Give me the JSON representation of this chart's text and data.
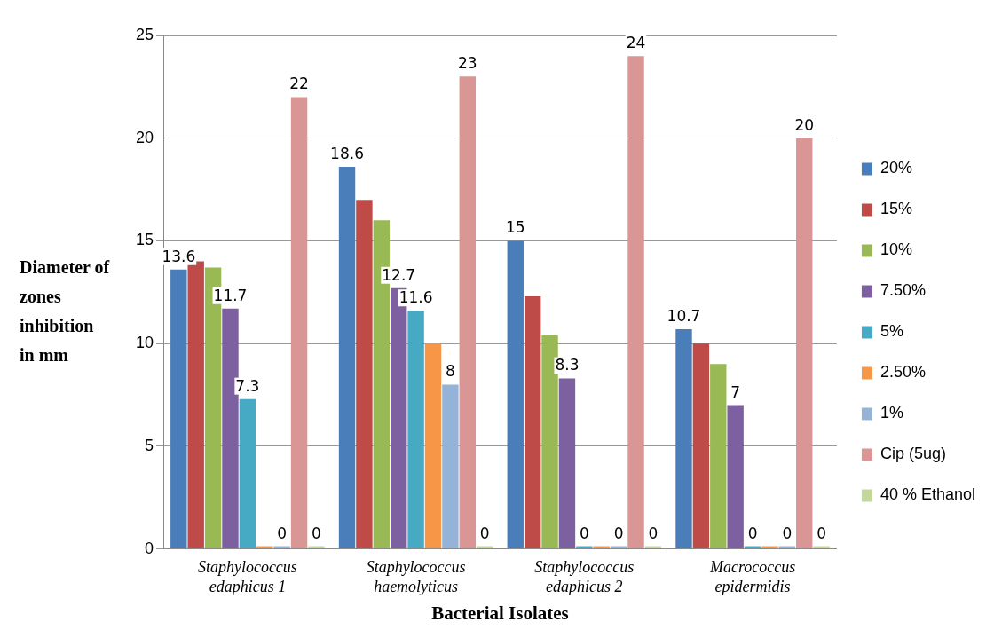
{
  "chart_data": {
    "type": "bar",
    "xlabel": "Bacterial Isolates",
    "ylabel": "Diameter of zones inhibition in mm",
    "categories": [
      "Staphylococcus edaphicus 1",
      "Staphylococcus haemolyticus",
      "Staphylococcus edaphicus 2",
      "Macrococcus epidermidis"
    ],
    "series": [
      {
        "name": "20%",
        "color": "#4a7ebb",
        "values": [
          13.6,
          18.6,
          15,
          10.7
        ],
        "value_labels": [
          "13.6",
          "18.6",
          "15",
          "10.7"
        ]
      },
      {
        "name": "15%",
        "color": "#be4b48",
        "values": [
          14,
          17,
          12.3,
          10
        ],
        "value_labels": [
          null,
          null,
          null,
          null
        ]
      },
      {
        "name": "10%",
        "color": "#98b954",
        "values": [
          13.7,
          16,
          10.4,
          9
        ],
        "value_labels": [
          null,
          null,
          null,
          null
        ]
      },
      {
        "name": "7.50%",
        "color": "#7d60a0",
        "values": [
          11.7,
          12.7,
          8.3,
          7
        ],
        "value_labels": [
          "11.7",
          "12.7",
          "8.3",
          "7"
        ]
      },
      {
        "name": "5%",
        "color": "#46aac5",
        "values": [
          7.3,
          11.6,
          0,
          0
        ],
        "value_labels": [
          "7.3",
          "11.6",
          "0",
          "0"
        ]
      },
      {
        "name": "2.50%",
        "color": "#f79646",
        "values": [
          0,
          10,
          0,
          0
        ],
        "value_labels": [
          null,
          null,
          null,
          null
        ]
      },
      {
        "name": "1%",
        "color": "#94b3d6",
        "values": [
          0,
          8,
          0,
          0
        ],
        "value_labels": [
          "0",
          "8",
          "0",
          "0"
        ]
      },
      {
        "name": "Cip (5ug)",
        "color": "#da9694",
        "values": [
          22,
          23,
          24,
          20
        ],
        "value_labels": [
          "22",
          "23",
          "24",
          "20"
        ]
      },
      {
        "name": "40 % Ethanol",
        "color": "#c3d69b",
        "values": [
          0,
          0,
          0,
          0
        ],
        "value_labels": [
          "0",
          "0",
          "0",
          "0"
        ]
      }
    ],
    "ylim": [
      0,
      25
    ],
    "yticks": [
      0,
      5,
      10,
      15,
      20,
      25
    ],
    "grid": "y",
    "legend": "right"
  }
}
